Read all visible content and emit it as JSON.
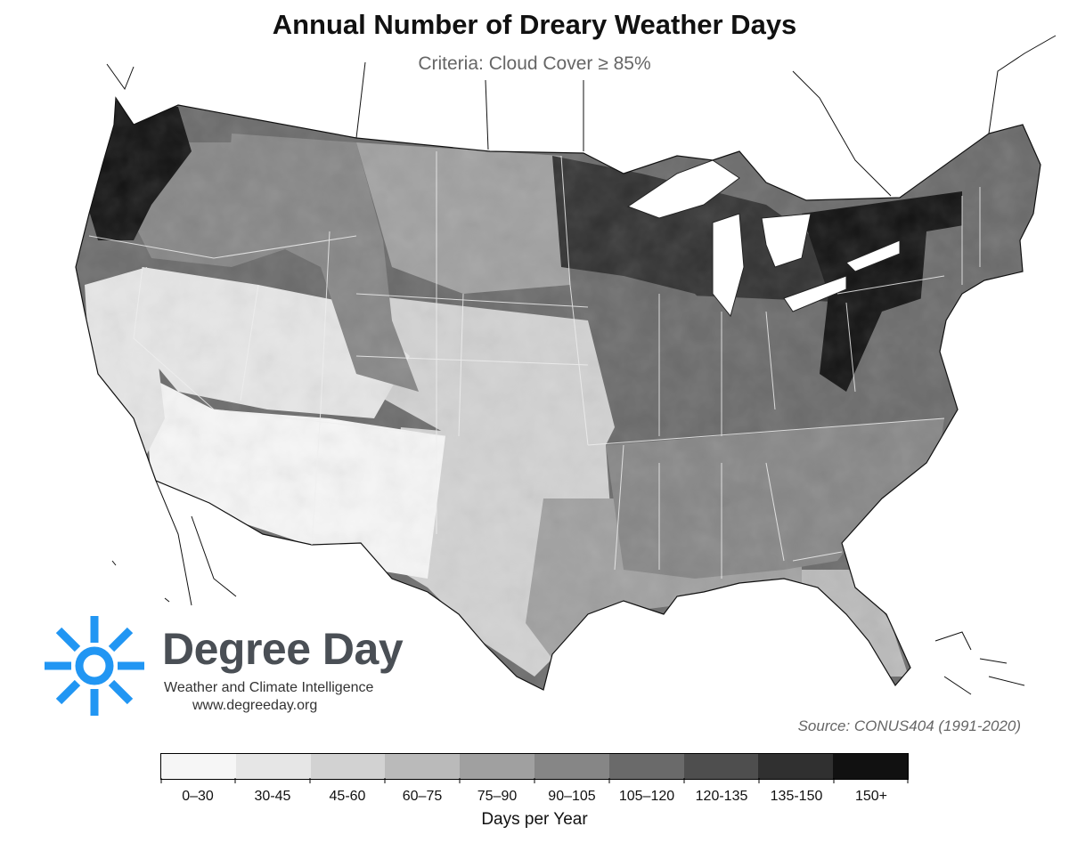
{
  "title": "Annual Number of Dreary Weather Days",
  "subtitle": "Criteria: Cloud Cover ≥ 85%",
  "logo": {
    "name": "Degree Day",
    "tagline": "Weather and Climate Intelligence",
    "url": "www.degreeday.org",
    "icon": "sun-icon",
    "color": "#2196f3"
  },
  "source": "Source: CONUS404 (1991-2020)",
  "legend": {
    "title": "Days per Year",
    "bins": [
      {
        "label": "0–30",
        "color": "#f6f6f6"
      },
      {
        "label": "30-45",
        "color": "#e6e6e6"
      },
      {
        "label": "45-60",
        "color": "#d2d2d2"
      },
      {
        "label": "60–75",
        "color": "#bababa"
      },
      {
        "label": "75–90",
        "color": "#a0a0a0"
      },
      {
        "label": "90–105",
        "color": "#868686"
      },
      {
        "label": "105–120",
        "color": "#6a6a6a"
      },
      {
        "label": "120-135",
        "color": "#4e4e4e"
      },
      {
        "label": "135-150",
        "color": "#303030"
      },
      {
        "label": "150+",
        "color": "#111111"
      }
    ]
  },
  "regions": [
    {
      "name": "pacific-northwest-coast",
      "bin": 9
    },
    {
      "name": "northwest-interior",
      "bin": 5
    },
    {
      "name": "california",
      "bin": 1
    },
    {
      "name": "great-basin",
      "bin": 1
    },
    {
      "name": "desert-southwest",
      "bin": 0
    },
    {
      "name": "rocky-mountains",
      "bin": 5
    },
    {
      "name": "northern-plains",
      "bin": 4
    },
    {
      "name": "central-plains",
      "bin": 2
    },
    {
      "name": "southern-plains",
      "bin": 2
    },
    {
      "name": "upper-midwest",
      "bin": 8
    },
    {
      "name": "ohio-valley",
      "bin": 6
    },
    {
      "name": "great-lakes-east",
      "bin": 9
    },
    {
      "name": "northeast",
      "bin": 6
    },
    {
      "name": "southeast",
      "bin": 5
    },
    {
      "name": "gulf-coast",
      "bin": 4
    },
    {
      "name": "florida",
      "bin": 3
    }
  ]
}
